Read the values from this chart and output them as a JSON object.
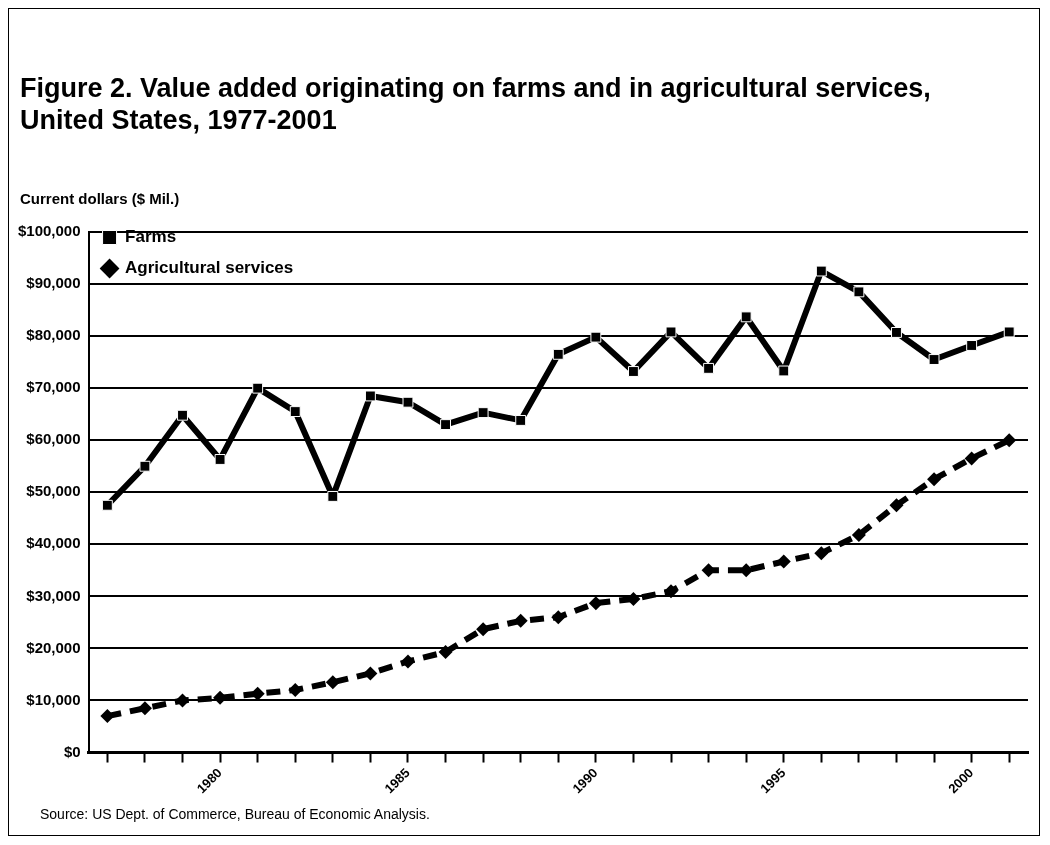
{
  "chart_data": {
    "type": "line",
    "title": "Figure 2.  Value added originating on farms and in agricultural services, United States, 1977-2001",
    "ylabel": "Current dollars ($ Mil.)",
    "categories": [
      null,
      null,
      null,
      "1980",
      null,
      null,
      null,
      null,
      "1985",
      null,
      null,
      null,
      null,
      "1990",
      null,
      null,
      null,
      null,
      "1995",
      null,
      null,
      null,
      null,
      "2000",
      null
    ],
    "series": [
      {
        "name": "Farms",
        "color": "#000000",
        "marker": "square",
        "line_style": "solid",
        "values": [
          47500,
          55000,
          64800,
          56300,
          70000,
          65500,
          49200,
          68500,
          67300,
          63000,
          65300,
          63800,
          76500,
          79800,
          73200,
          80800,
          73800,
          83700,
          73300,
          92500,
          88500,
          80700,
          75500,
          78200,
          80800
        ]
      },
      {
        "name": "Agricultural services",
        "color": "#000000",
        "marker": "diamond",
        "line_style": "dashed",
        "values": [
          7000,
          8500,
          10000,
          10500,
          11300,
          12000,
          13500,
          15200,
          17500,
          19300,
          23700,
          25300,
          26000,
          28700,
          29500,
          31000,
          35000,
          35000,
          36700,
          38300,
          41800,
          47500,
          52500,
          56500,
          60000
        ]
      }
    ],
    "ylim": [
      0,
      100000
    ],
    "yticks": [
      {
        "value": 0,
        "label": "$0"
      },
      {
        "value": 10000,
        "label": "$10,000"
      },
      {
        "value": 20000,
        "label": "$20,000"
      },
      {
        "value": 30000,
        "label": "$30,000"
      },
      {
        "value": 40000,
        "label": "$40,000"
      },
      {
        "value": 50000,
        "label": "$50,000"
      },
      {
        "value": 60000,
        "label": "$60,000"
      },
      {
        "value": 70000,
        "label": "$70,000"
      },
      {
        "value": 80000,
        "label": "$80,000"
      },
      {
        "value": 90000,
        "label": "$90,000"
      },
      {
        "value": 100000,
        "label": "$100,000"
      }
    ],
    "grid": "y",
    "legend": "top left",
    "annotations": [
      "Source:  US Dept. of Commerce, Bureau of Economic Analysis."
    ]
  }
}
